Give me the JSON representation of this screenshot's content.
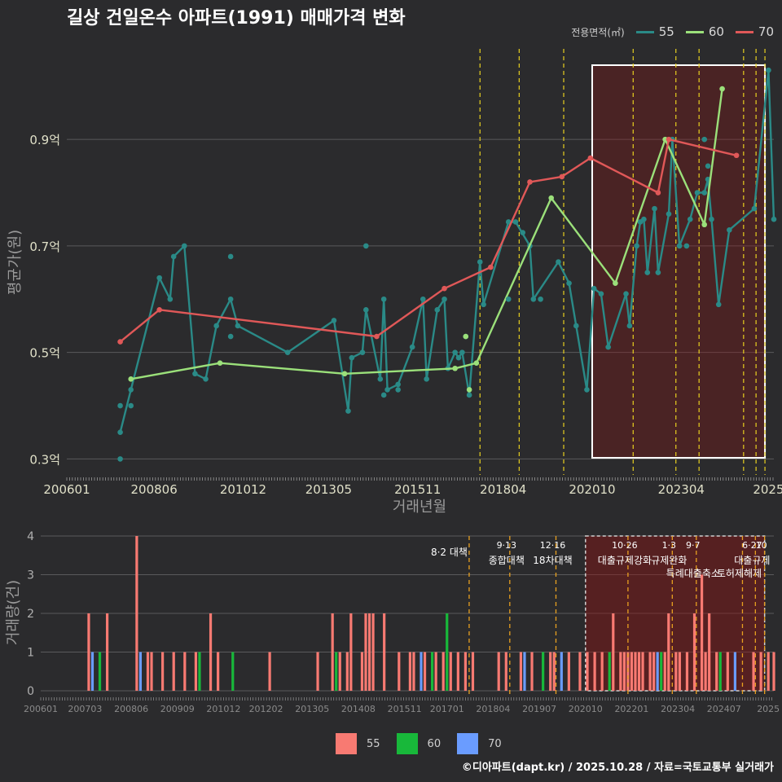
{
  "title": "길상 건일온수 아파트(1991) 매매가격 변화",
  "credit": "©디아파트(dapt.kr) / 2025.10.28 / 자료=국토교통부 실거래가",
  "legend": {
    "title": "전용면적(㎡)",
    "items": [
      {
        "label": "55",
        "color": "#2a8a87"
      },
      {
        "label": "60",
        "color": "#9be07a"
      },
      {
        "label": "70",
        "color": "#e05858"
      }
    ]
  },
  "bar_legend": [
    {
      "label": "55",
      "color": "#f87a72"
    },
    {
      "label": "60",
      "color": "#18b83a"
    },
    {
      "label": "70",
      "color": "#6a9cff"
    }
  ],
  "chart_data": [
    {
      "type": "line",
      "title": "길상 건일온수 아파트(1991) 매매가격 변화",
      "xlabel": "거래년월",
      "ylabel": "평균가(원)",
      "x_ticks": [
        "200601",
        "200806",
        "201012",
        "201305",
        "201511",
        "201804",
        "202010",
        "202304",
        "2025"
      ],
      "y_ticks": [
        "0.3억",
        "0.5억",
        "0.7억",
        "0.9억"
      ],
      "y_tick_values": [
        0.3,
        0.5,
        0.7,
        0.9
      ],
      "xlim": [
        2006.0,
        2025.85
      ],
      "ylim": [
        0.27,
        1.07
      ],
      "highlight_range": [
        2020.75,
        2025.6
      ],
      "policy_lines": [
        2017.6,
        2018.7,
        2019.95,
        2021.9,
        2023.1,
        2023.75,
        2025.0,
        2025.35,
        2025.6
      ],
      "series": [
        {
          "name": "55",
          "color": "#2a8a87",
          "points": [
            [
              2007.5,
              0.35
            ],
            [
              2007.8,
              0.43
            ],
            [
              2008.6,
              0.64
            ],
            [
              2008.9,
              0.6
            ],
            [
              2009.0,
              0.68
            ],
            [
              2009.3,
              0.7
            ],
            [
              2009.6,
              0.46
            ],
            [
              2009.9,
              0.45
            ],
            [
              2010.2,
              0.55
            ],
            [
              2010.6,
              0.6
            ],
            [
              2010.8,
              0.55
            ],
            [
              2012.2,
              0.5
            ],
            [
              2013.5,
              0.56
            ],
            [
              2013.9,
              0.39
            ],
            [
              2014.0,
              0.49
            ],
            [
              2014.3,
              0.5
            ],
            [
              2014.4,
              0.58
            ],
            [
              2014.8,
              0.45
            ],
            [
              2014.9,
              0.6
            ],
            [
              2015.0,
              0.43
            ],
            [
              2015.3,
              0.44
            ],
            [
              2015.7,
              0.51
            ],
            [
              2016.0,
              0.6
            ],
            [
              2016.1,
              0.45
            ],
            [
              2016.4,
              0.58
            ],
            [
              2016.6,
              0.6
            ],
            [
              2016.7,
              0.47
            ],
            [
              2016.9,
              0.5
            ],
            [
              2017.0,
              0.49
            ],
            [
              2017.1,
              0.5
            ],
            [
              2017.3,
              0.42
            ],
            [
              2017.6,
              0.67
            ],
            [
              2017.7,
              0.59
            ],
            [
              2018.4,
              0.745
            ],
            [
              2018.6,
              0.745
            ],
            [
              2019.0,
              0.7
            ],
            [
              2019.1,
              0.6
            ],
            [
              2019.8,
              0.67
            ],
            [
              2020.1,
              0.63
            ],
            [
              2020.3,
              0.55
            ],
            [
              2020.6,
              0.43
            ],
            [
              2020.8,
              0.62
            ],
            [
              2021.0,
              0.61
            ],
            [
              2021.2,
              0.51
            ],
            [
              2021.7,
              0.61
            ],
            [
              2021.8,
              0.55
            ],
            [
              2022.0,
              0.7
            ],
            [
              2022.1,
              0.745
            ],
            [
              2022.2,
              0.75
            ],
            [
              2022.3,
              0.65
            ],
            [
              2022.5,
              0.77
            ],
            [
              2022.6,
              0.65
            ],
            [
              2022.9,
              0.76
            ],
            [
              2023.0,
              0.9
            ],
            [
              2023.2,
              0.7
            ],
            [
              2023.5,
              0.75
            ],
            [
              2023.7,
              0.8
            ],
            [
              2023.9,
              0.8
            ],
            [
              2024.0,
              0.825
            ],
            [
              2024.1,
              0.75
            ],
            [
              2024.3,
              0.59
            ],
            [
              2024.6,
              0.73
            ],
            [
              2025.3,
              0.77
            ],
            [
              2025.7,
              1.03
            ],
            [
              2025.85,
              0.75
            ]
          ]
        },
        {
          "name": "60",
          "color": "#9be07a",
          "points": [
            [
              2007.8,
              0.45
            ],
            [
              2010.3,
              0.48
            ],
            [
              2013.8,
              0.46
            ],
            [
              2016.9,
              0.47
            ],
            [
              2017.5,
              0.48
            ],
            [
              2019.6,
              0.79
            ],
            [
              2021.4,
              0.63
            ],
            [
              2022.8,
              0.9
            ],
            [
              2023.9,
              0.74
            ],
            [
              2024.4,
              0.995
            ]
          ]
        },
        {
          "name": "70",
          "color": "#e05858",
          "points": [
            [
              2007.5,
              0.52
            ],
            [
              2008.6,
              0.58
            ],
            [
              2014.7,
              0.53
            ],
            [
              2016.6,
              0.62
            ],
            [
              2017.9,
              0.66
            ],
            [
              2019.0,
              0.82
            ],
            [
              2019.9,
              0.83
            ],
            [
              2020.7,
              0.865
            ],
            [
              2022.6,
              0.8
            ],
            [
              2022.9,
              0.9
            ],
            [
              2024.8,
              0.87
            ]
          ]
        }
      ],
      "scatter_extra": [
        {
          "series": "55",
          "points": [
            [
              2007.5,
              0.4
            ],
            [
              2007.5,
              0.3
            ],
            [
              2007.8,
              0.4
            ],
            [
              2010.6,
              0.68
            ],
            [
              2010.6,
              0.53
            ],
            [
              2014.4,
              0.7
            ],
            [
              2014.9,
              0.42
            ],
            [
              2015.3,
              0.43
            ],
            [
              2017.2,
              0.53
            ],
            [
              2018.4,
              0.6
            ],
            [
              2018.8,
              0.725
            ],
            [
              2019.3,
              0.6
            ],
            [
              2023.4,
              0.7
            ],
            [
              2023.9,
              0.9
            ],
            [
              2024.0,
              0.85
            ]
          ]
        },
        {
          "series": "60",
          "points": [
            [
              2017.2,
              0.53
            ],
            [
              2017.3,
              0.43
            ]
          ]
        }
      ]
    },
    {
      "type": "bar",
      "xlabel": "",
      "ylabel": "거래량(건)",
      "x_ticks": [
        "200601",
        "200703",
        "200806",
        "200909",
        "201012",
        "201202",
        "201305",
        "201408",
        "201511",
        "201701",
        "201804",
        "201907",
        "202010",
        "202201",
        "202304",
        "202407",
        "2025"
      ],
      "y_ticks": [
        "0",
        "1",
        "2",
        "3",
        "4"
      ],
      "ylim": [
        0,
        4.2
      ],
      "highlight_range": [
        2020.75,
        2025.6
      ],
      "policy_events": [
        {
          "x": 2017.6,
          "date": "",
          "label": "8·2 대책"
        },
        {
          "x": 2018.7,
          "date": "9·13",
          "label": "종합대책"
        },
        {
          "x": 2019.95,
          "date": "12·16",
          "label": "18차대책"
        },
        {
          "x": 2021.9,
          "date": "10·26",
          "label": "대출규제강화"
        },
        {
          "x": 2023.1,
          "date": "1·3",
          "label": "규제완화"
        },
        {
          "x": 2023.75,
          "date": "9·7",
          "label": "특례대출축소"
        },
        {
          "x": 2025.0,
          "date": "",
          "label": "토허제해제"
        },
        {
          "x": 2025.35,
          "date": "6·27",
          "label": "대출규제"
        },
        {
          "x": 2025.6,
          "date": "10",
          "label": ""
        }
      ],
      "bars": [
        {
          "x": 2007.3,
          "v": 2,
          "s": "55"
        },
        {
          "x": 2007.4,
          "v": 1,
          "s": "70"
        },
        {
          "x": 2007.6,
          "v": 1,
          "s": "60"
        },
        {
          "x": 2007.8,
          "v": 2,
          "s": "55"
        },
        {
          "x": 2008.6,
          "v": 4,
          "s": "55"
        },
        {
          "x": 2008.7,
          "v": 1,
          "s": "70"
        },
        {
          "x": 2008.9,
          "v": 1,
          "s": "55"
        },
        {
          "x": 2009.0,
          "v": 1,
          "s": "55"
        },
        {
          "x": 2009.3,
          "v": 1,
          "s": "55"
        },
        {
          "x": 2009.6,
          "v": 1,
          "s": "55"
        },
        {
          "x": 2009.9,
          "v": 1,
          "s": "55"
        },
        {
          "x": 2010.2,
          "v": 1,
          "s": "55"
        },
        {
          "x": 2010.3,
          "v": 1,
          "s": "60"
        },
        {
          "x": 2010.6,
          "v": 2,
          "s": "55"
        },
        {
          "x": 2010.8,
          "v": 1,
          "s": "55"
        },
        {
          "x": 2011.2,
          "v": 1,
          "s": "60"
        },
        {
          "x": 2012.2,
          "v": 1,
          "s": "55"
        },
        {
          "x": 2013.5,
          "v": 1,
          "s": "55"
        },
        {
          "x": 2013.9,
          "v": 2,
          "s": "55"
        },
        {
          "x": 2014.0,
          "v": 1,
          "s": "60"
        },
        {
          "x": 2014.1,
          "v": 1,
          "s": "55"
        },
        {
          "x": 2014.3,
          "v": 1,
          "s": "55"
        },
        {
          "x": 2014.4,
          "v": 2,
          "s": "55"
        },
        {
          "x": 2014.7,
          "v": 1,
          "s": "55"
        },
        {
          "x": 2014.8,
          "v": 2,
          "s": "55"
        },
        {
          "x": 2014.9,
          "v": 2,
          "s": "55"
        },
        {
          "x": 2015.0,
          "v": 2,
          "s": "55"
        },
        {
          "x": 2015.3,
          "v": 2,
          "s": "55"
        },
        {
          "x": 2015.7,
          "v": 1,
          "s": "55"
        },
        {
          "x": 2016.0,
          "v": 1,
          "s": "55"
        },
        {
          "x": 2016.1,
          "v": 1,
          "s": "55"
        },
        {
          "x": 2016.3,
          "v": 1,
          "s": "70"
        },
        {
          "x": 2016.4,
          "v": 1,
          "s": "55"
        },
        {
          "x": 2016.6,
          "v": 1,
          "s": "60"
        },
        {
          "x": 2016.7,
          "v": 1,
          "s": "55"
        },
        {
          "x": 2016.9,
          "v": 1,
          "s": "55"
        },
        {
          "x": 2017.0,
          "v": 2,
          "s": "60"
        },
        {
          "x": 2017.1,
          "v": 1,
          "s": "55"
        },
        {
          "x": 2017.3,
          "v": 1,
          "s": "55"
        },
        {
          "x": 2017.5,
          "v": 1,
          "s": "55"
        },
        {
          "x": 2017.7,
          "v": 1,
          "s": "55"
        },
        {
          "x": 2018.4,
          "v": 1,
          "s": "55"
        },
        {
          "x": 2018.6,
          "v": 1,
          "s": "55"
        },
        {
          "x": 2019.0,
          "v": 1,
          "s": "55"
        },
        {
          "x": 2019.1,
          "v": 1,
          "s": "70"
        },
        {
          "x": 2019.3,
          "v": 1,
          "s": "55"
        },
        {
          "x": 2019.6,
          "v": 1,
          "s": "60"
        },
        {
          "x": 2019.8,
          "v": 1,
          "s": "55"
        },
        {
          "x": 2019.9,
          "v": 1,
          "s": "55"
        },
        {
          "x": 2020.1,
          "v": 1,
          "s": "70"
        },
        {
          "x": 2020.3,
          "v": 1,
          "s": "55"
        },
        {
          "x": 2020.6,
          "v": 1,
          "s": "55"
        },
        {
          "x": 2020.8,
          "v": 1,
          "s": "55"
        },
        {
          "x": 2021.0,
          "v": 1,
          "s": "55"
        },
        {
          "x": 2021.2,
          "v": 1,
          "s": "55"
        },
        {
          "x": 2021.4,
          "v": 1,
          "s": "60"
        },
        {
          "x": 2021.5,
          "v": 2,
          "s": "55"
        },
        {
          "x": 2021.7,
          "v": 1,
          "s": "55"
        },
        {
          "x": 2021.8,
          "v": 1,
          "s": "55"
        },
        {
          "x": 2021.9,
          "v": 1,
          "s": "55"
        },
        {
          "x": 2022.0,
          "v": 1,
          "s": "55"
        },
        {
          "x": 2022.1,
          "v": 1,
          "s": "55"
        },
        {
          "x": 2022.2,
          "v": 1,
          "s": "55"
        },
        {
          "x": 2022.3,
          "v": 1,
          "s": "55"
        },
        {
          "x": 2022.5,
          "v": 1,
          "s": "55"
        },
        {
          "x": 2022.6,
          "v": 1,
          "s": "55"
        },
        {
          "x": 2022.7,
          "v": 1,
          "s": "70"
        },
        {
          "x": 2022.8,
          "v": 1,
          "s": "60"
        },
        {
          "x": 2022.9,
          "v": 1,
          "s": "55"
        },
        {
          "x": 2023.0,
          "v": 2,
          "s": "55"
        },
        {
          "x": 2023.2,
          "v": 1,
          "s": "55"
        },
        {
          "x": 2023.3,
          "v": 1,
          "s": "55"
        },
        {
          "x": 2023.5,
          "v": 1,
          "s": "55"
        },
        {
          "x": 2023.7,
          "v": 2,
          "s": "55"
        },
        {
          "x": 2023.9,
          "v": 3,
          "s": "55"
        },
        {
          "x": 2024.0,
          "v": 1,
          "s": "55"
        },
        {
          "x": 2024.1,
          "v": 2,
          "s": "55"
        },
        {
          "x": 2024.3,
          "v": 1,
          "s": "55"
        },
        {
          "x": 2024.4,
          "v": 1,
          "s": "60"
        },
        {
          "x": 2024.6,
          "v": 1,
          "s": "55"
        },
        {
          "x": 2024.8,
          "v": 1,
          "s": "70"
        },
        {
          "x": 2025.3,
          "v": 1,
          "s": "55"
        },
        {
          "x": 2025.5,
          "v": 1,
          "s": "55"
        },
        {
          "x": 2025.7,
          "v": 1,
          "s": "55"
        },
        {
          "x": 2025.85,
          "v": 1,
          "s": "55"
        }
      ]
    }
  ]
}
